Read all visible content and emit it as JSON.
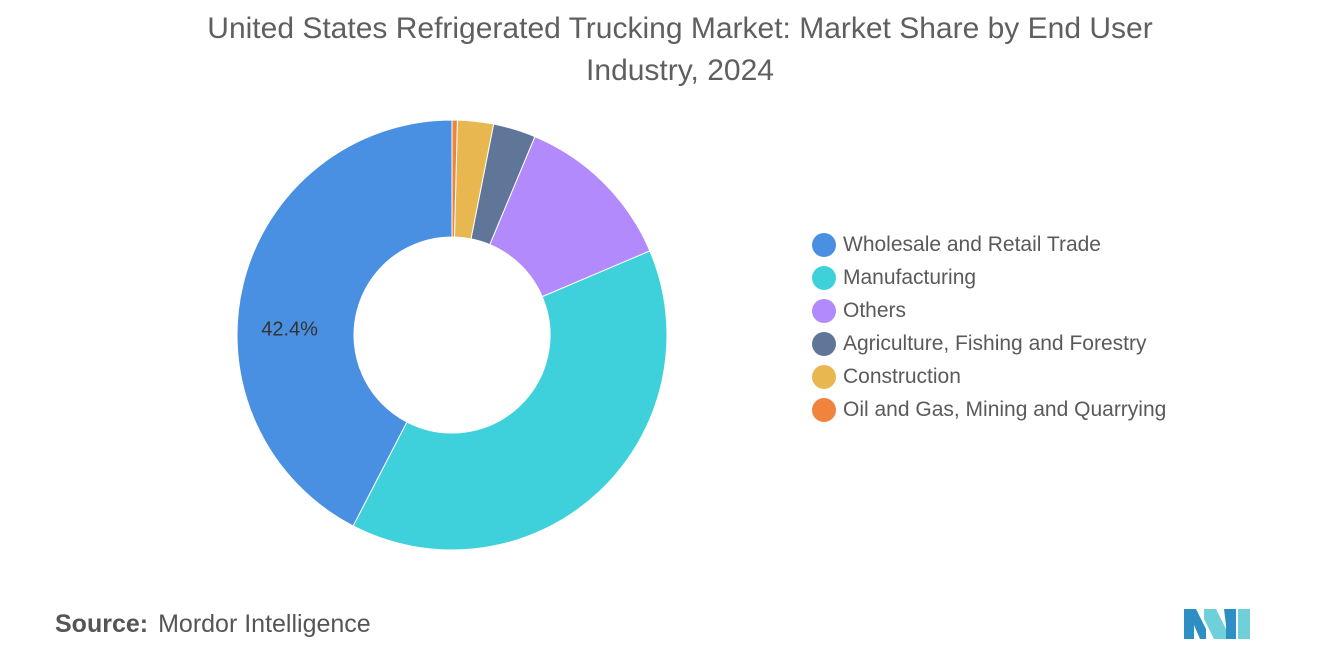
{
  "title": "United States Refrigerated Trucking Market: Market Share by End User Industry, 2024",
  "source": {
    "label": "Source:",
    "value": "Mordor Intelligence"
  },
  "logo_icon": "mordor-intelligence-logo-icon",
  "chart_data": {
    "type": "pie",
    "donut": true,
    "title": "United States Refrigerated Trucking Market: Market Share by End User Industry, 2024",
    "unit": "%",
    "legend_position": "right",
    "slices": [
      {
        "name": "Wholesale and Retail Trade",
        "value": 42.4,
        "color": "#4a90e2",
        "label": "42.4%"
      },
      {
        "name": "Manufacturing",
        "value": 39.0,
        "color": "#3fd1db",
        "label": ""
      },
      {
        "name": "Others",
        "value": 12.3,
        "color": "#b28afc",
        "label": ""
      },
      {
        "name": "Agriculture, Fishing and Forestry",
        "value": 3.2,
        "color": "#5f7699",
        "label": ""
      },
      {
        "name": "Construction",
        "value": 2.7,
        "color": "#e9b74f",
        "label": ""
      },
      {
        "name": "Oil and Gas, Mining and Quarrying",
        "value": 0.4,
        "color": "#f0843f",
        "label": ""
      }
    ]
  }
}
